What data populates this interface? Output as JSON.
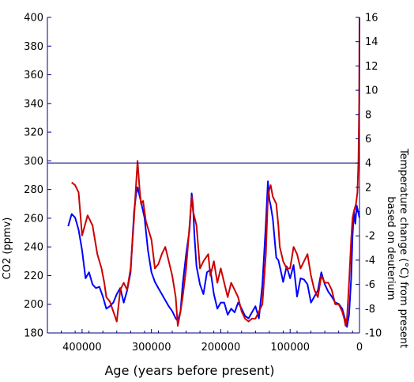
{
  "chart_data": {
    "type": "line",
    "xlabel": "Age (years before present)",
    "ylabel_left": "CO2 (ppmv)",
    "ylabel_right_lines": [
      "Temperature change (°C) from present",
      "based on deuterium"
    ],
    "x_range": [
      450000,
      0
    ],
    "x_ticks": [
      400000,
      300000,
      200000,
      100000,
      0
    ],
    "x_tick_labels": [
      "400000",
      "300000",
      "200000",
      "100000",
      "0"
    ],
    "y_left_range": [
      180,
      400
    ],
    "y_left_ticks": [
      180,
      200,
      220,
      240,
      260,
      280,
      300,
      320,
      340,
      360,
      380,
      400
    ],
    "y_right_range": [
      -10,
      16
    ],
    "y_right_ticks": [
      -10,
      -8,
      -6,
      -4,
      -2,
      0,
      2,
      4,
      6,
      8,
      10,
      12,
      14,
      16
    ],
    "y_right_break": 4,
    "colors": {
      "temperature": "#0000ff",
      "co2": "#cc0000",
      "axes": "#000080"
    },
    "series": [
      {
        "key": "temperature",
        "axis": "right",
        "x": [
          420000,
          415000,
          410000,
          405000,
          400000,
          395000,
          390000,
          385000,
          380000,
          375000,
          370000,
          365000,
          360000,
          355000,
          350000,
          345000,
          340000,
          335000,
          330000,
          325000,
          322000,
          320000,
          315000,
          310000,
          305000,
          300000,
          295000,
          290000,
          285000,
          280000,
          275000,
          270000,
          265000,
          262000,
          258000,
          255000,
          250000,
          245000,
          242000,
          240000,
          238000,
          235000,
          230000,
          225000,
          220000,
          215000,
          210000,
          205000,
          200000,
          195000,
          190000,
          185000,
          180000,
          175000,
          170000,
          165000,
          160000,
          155000,
          150000,
          145000,
          140000,
          135000,
          132000,
          130000,
          128000,
          125000,
          122000,
          120000,
          117000,
          115000,
          110000,
          105000,
          100000,
          95000,
          90000,
          85000,
          80000,
          75000,
          70000,
          65000,
          60000,
          55000,
          50000,
          45000,
          40000,
          35000,
          30000,
          25000,
          20000,
          18000,
          15000,
          12000,
          10000,
          8000,
          6000,
          4000,
          2000,
          0
        ],
        "values": [
          -1.2,
          -0.2,
          -0.5,
          -1.5,
          -3.2,
          -5.5,
          -5.0,
          -6.0,
          -6.3,
          -6.2,
          -7.0,
          -8.0,
          -7.8,
          -7.5,
          -6.8,
          -6.3,
          -7.5,
          -6.5,
          -5.0,
          0.0,
          1.5,
          2.0,
          0.8,
          -0.5,
          -3.2,
          -5.0,
          -5.8,
          -6.3,
          -6.8,
          -7.3,
          -7.8,
          -8.2,
          -8.8,
          -9.0,
          -8.2,
          -6.0,
          -3.5,
          -1.5,
          1.5,
          0.5,
          -2.0,
          -4.5,
          -6.0,
          -6.8,
          -5.0,
          -4.8,
          -6.8,
          -8.0,
          -7.5,
          -7.5,
          -8.5,
          -8.0,
          -8.3,
          -7.5,
          -8.0,
          -8.6,
          -8.8,
          -8.3,
          -7.8,
          -8.8,
          -6.0,
          -1.0,
          2.5,
          1.0,
          0.5,
          -0.6,
          -2.5,
          -3.8,
          -4.0,
          -4.5,
          -5.8,
          -4.5,
          -5.5,
          -4.4,
          -7.0,
          -5.5,
          -5.6,
          -6.0,
          -7.5,
          -7.0,
          -6.5,
          -5.0,
          -6.0,
          -6.6,
          -7.0,
          -7.5,
          -7.6,
          -8.0,
          -9.0,
          -9.5,
          -8.5,
          -5.5,
          -2.0,
          0.0,
          -1.0,
          0.5,
          0.0,
          -0.5
        ]
      },
      {
        "key": "co2",
        "axis": "left",
        "x": [
          415000,
          410000,
          405000,
          400000,
          396000,
          392000,
          385000,
          378000,
          372000,
          368000,
          365000,
          360000,
          355000,
          350000,
          345000,
          340000,
          335000,
          330000,
          325000,
          322000,
          320000,
          317000,
          315000,
          312000,
          308000,
          300000,
          295000,
          290000,
          285000,
          280000,
          275000,
          270000,
          265000,
          262000,
          258000,
          255000,
          250000,
          245000,
          242000,
          240000,
          235000,
          230000,
          225000,
          218000,
          215000,
          210000,
          205000,
          200000,
          195000,
          190000,
          185000,
          180000,
          175000,
          170000,
          165000,
          160000,
          155000,
          150000,
          145000,
          140000,
          135000,
          132000,
          130000,
          128000,
          125000,
          120000,
          117000,
          115000,
          110000,
          105000,
          100000,
          95000,
          90000,
          85000,
          80000,
          75000,
          70000,
          65000,
          60000,
          55000,
          50000,
          45000,
          40000,
          35000,
          30000,
          25000,
          22000,
          20000,
          18000,
          15000,
          12000,
          10000,
          8000,
          5000,
          3000,
          1500,
          500,
          0
        ],
        "values": [
          285,
          283,
          278,
          248,
          255,
          262,
          255,
          235,
          225,
          215,
          205,
          202,
          195,
          188,
          210,
          215,
          210,
          225,
          260,
          285,
          300,
          280,
          270,
          272,
          258,
          245,
          225,
          228,
          235,
          240,
          230,
          220,
          205,
          185,
          195,
          205,
          225,
          255,
          275,
          265,
          255,
          225,
          230,
          235,
          220,
          230,
          215,
          225,
          215,
          205,
          215,
          210,
          205,
          195,
          190,
          188,
          190,
          190,
          195,
          200,
          235,
          275,
          280,
          283,
          275,
          270,
          255,
          240,
          230,
          225,
          225,
          240,
          235,
          225,
          230,
          235,
          220,
          210,
          205,
          220,
          215,
          215,
          210,
          200,
          200,
          195,
          190,
          185,
          190,
          215,
          245,
          260,
          265,
          270,
          278,
          300,
          340,
          400
        ]
      }
    ]
  }
}
